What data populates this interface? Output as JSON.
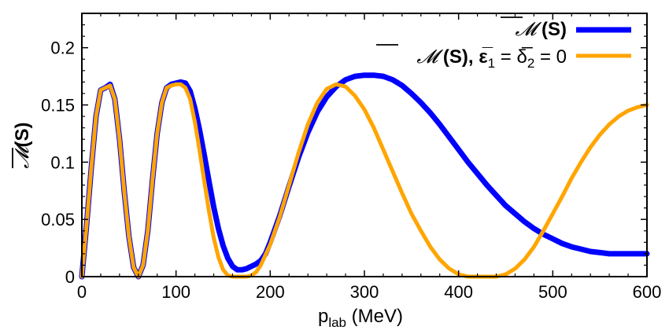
{
  "chart_data": {
    "type": "line",
    "title": "",
    "xlabel": "p_lab (MeV)",
    "xlabel_main": "p",
    "xlabel_sub": "lab",
    "xlabel_unit": " (MeV)",
    "ylabel": "M(S)",
    "ylabel_symbol": "𝓜",
    "ylabel_arg": "(S)",
    "xlim": [
      0,
      600
    ],
    "ylim": [
      0,
      0.23
    ],
    "x_ticks": [
      0,
      100,
      200,
      300,
      400,
      500,
      600
    ],
    "x_tick_labels": [
      "0",
      "100",
      "200",
      "300",
      "400",
      "500",
      "600"
    ],
    "y_ticks": [
      0,
      0.05,
      0.1,
      0.15,
      0.2
    ],
    "y_tick_labels": [
      "0",
      "0.05",
      "0.1",
      "0.15",
      "0.2"
    ],
    "grid": false,
    "legend_position": "top-right",
    "series": [
      {
        "name": "M (S)",
        "legend_symbol": "𝓜",
        "legend_rest": " (S)",
        "color": "#0000ff",
        "x": [
          0,
          5,
          10,
          15,
          20,
          25,
          30,
          35,
          40,
          45,
          50,
          55,
          60,
          65,
          70,
          75,
          80,
          85,
          90,
          95,
          100,
          105,
          110,
          115,
          120,
          125,
          130,
          135,
          140,
          145,
          150,
          155,
          160,
          165,
          170,
          175,
          180,
          185,
          190,
          195,
          200,
          210,
          220,
          230,
          240,
          250,
          260,
          270,
          280,
          290,
          300,
          310,
          320,
          330,
          340,
          350,
          360,
          370,
          380,
          390,
          400,
          410,
          420,
          430,
          440,
          450,
          460,
          470,
          480,
          490,
          500,
          510,
          520,
          530,
          540,
          550,
          560,
          570,
          580,
          590,
          600
        ],
        "values": [
          0,
          0.045,
          0.095,
          0.14,
          0.163,
          0.165,
          0.168,
          0.155,
          0.12,
          0.075,
          0.035,
          0.008,
          0.0,
          0.01,
          0.04,
          0.085,
          0.125,
          0.152,
          0.165,
          0.168,
          0.169,
          0.17,
          0.169,
          0.162,
          0.147,
          0.128,
          0.106,
          0.083,
          0.061,
          0.042,
          0.027,
          0.016,
          0.009,
          0.006,
          0.006,
          0.007,
          0.009,
          0.011,
          0.014,
          0.02,
          0.03,
          0.053,
          0.079,
          0.104,
          0.126,
          0.144,
          0.157,
          0.166,
          0.172,
          0.175,
          0.176,
          0.176,
          0.175,
          0.172,
          0.167,
          0.16,
          0.152,
          0.143,
          0.133,
          0.122,
          0.111,
          0.1,
          0.09,
          0.08,
          0.071,
          0.062,
          0.055,
          0.048,
          0.042,
          0.037,
          0.033,
          0.029,
          0.026,
          0.024,
          0.022,
          0.021,
          0.02,
          0.02,
          0.02,
          0.02,
          0.02
        ]
      },
      {
        "name": "M (S), ε̅1 = δ̅2 = 0",
        "legend_symbol": "𝓜",
        "legend_rest": " (S), ε̅",
        "legend_sub1": "1",
        "legend_mid": " = δ̅",
        "legend_sub2": "2",
        "legend_end": " = 0",
        "color": "#ffa500",
        "x": [
          0,
          5,
          10,
          15,
          20,
          25,
          30,
          35,
          40,
          45,
          50,
          55,
          60,
          65,
          70,
          75,
          80,
          85,
          90,
          95,
          100,
          105,
          110,
          115,
          120,
          125,
          130,
          135,
          140,
          145,
          150,
          155,
          160,
          165,
          170,
          175,
          180,
          185,
          190,
          200,
          210,
          220,
          230,
          240,
          250,
          260,
          270,
          280,
          290,
          300,
          310,
          320,
          330,
          340,
          350,
          360,
          370,
          380,
          390,
          400,
          410,
          420,
          430,
          440,
          450,
          460,
          470,
          480,
          490,
          500,
          510,
          520,
          530,
          540,
          550,
          560,
          570,
          580,
          590,
          600
        ],
        "values": [
          0,
          0.045,
          0.095,
          0.14,
          0.163,
          0.165,
          0.167,
          0.155,
          0.12,
          0.075,
          0.035,
          0.008,
          0.0,
          0.01,
          0.04,
          0.085,
          0.125,
          0.152,
          0.165,
          0.167,
          0.168,
          0.168,
          0.165,
          0.155,
          0.135,
          0.11,
          0.083,
          0.057,
          0.034,
          0.017,
          0.006,
          0.001,
          0.0,
          0.0,
          0.0,
          0.0,
          0.001,
          0.004,
          0.01,
          0.028,
          0.052,
          0.08,
          0.108,
          0.133,
          0.152,
          0.164,
          0.168,
          0.166,
          0.158,
          0.146,
          0.13,
          0.111,
          0.092,
          0.073,
          0.055,
          0.04,
          0.026,
          0.015,
          0.007,
          0.002,
          0.0,
          0.0,
          0.0,
          0.0,
          0.002,
          0.007,
          0.015,
          0.026,
          0.04,
          0.055,
          0.07,
          0.086,
          0.1,
          0.113,
          0.124,
          0.133,
          0.14,
          0.145,
          0.148,
          0.15
        ]
      }
    ]
  }
}
